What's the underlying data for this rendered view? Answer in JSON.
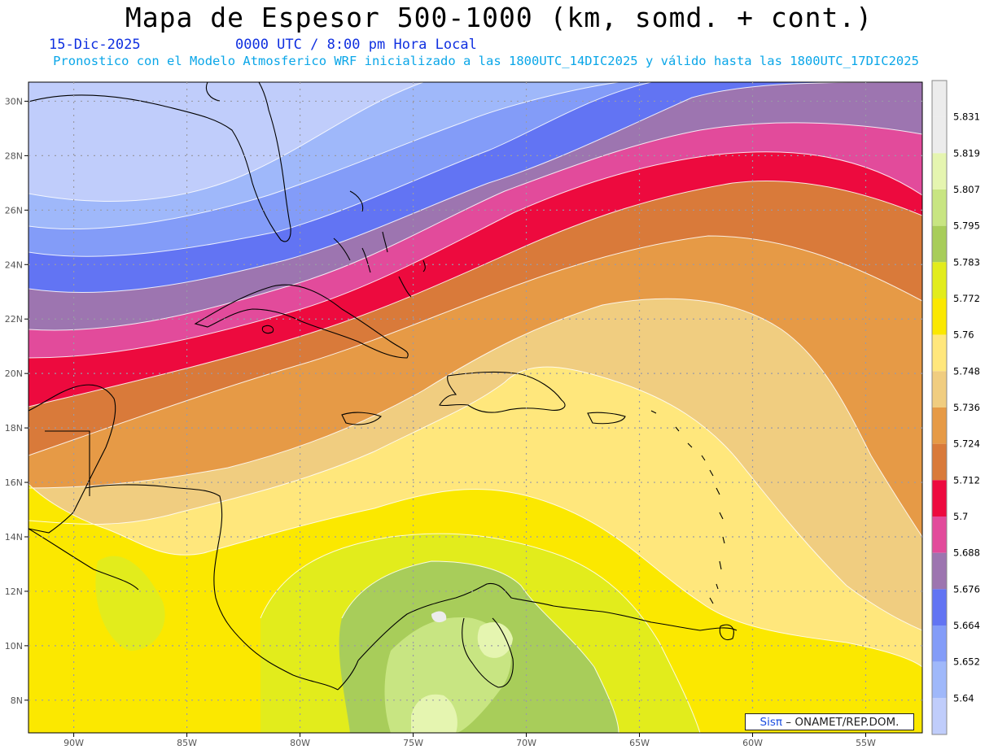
{
  "title": "Mapa de Espesor 500-1000 (km, somd. + cont.)",
  "date": "15-Dic-2025",
  "time": "0000 UTC / 8:00 pm Hora Local",
  "subtitle": "Pronostico con el Modelo Atmosferico WRF inicializado a las 1800UTC_14DIC2025 y válido hasta las  1800UTC_17DIC2025",
  "credit": {
    "brand": "Sisπ",
    "org": "ONAMET/REP.DOM."
  },
  "chart_data": {
    "type": "heatmap",
    "units": "km",
    "lon_ticks": [
      "90W",
      "85W",
      "80W",
      "75W",
      "70W",
      "65W",
      "60W",
      "55W"
    ],
    "lat_ticks": [
      "30N",
      "28N",
      "26N",
      "24N",
      "22N",
      "20N",
      "18N",
      "16N",
      "14N",
      "12N",
      "10N",
      "8N"
    ],
    "colorbar": {
      "levels": [
        "5.64",
        "5.652",
        "5.664",
        "5.676",
        "5.688",
        "5.7",
        "5.712",
        "5.724",
        "5.736",
        "5.748",
        "5.76",
        "5.772",
        "5.783",
        "5.795",
        "5.807",
        "5.819",
        "5.831"
      ],
      "colors": [
        "#c0cdfb",
        "#9fb8fa",
        "#839cf8",
        "#6274f3",
        "#9d75b0",
        "#e24b9b",
        "#ed0a3e",
        "#d97a3a",
        "#e69a46",
        "#f0cd80",
        "#ffe77c",
        "#fbe800",
        "#e2ec1c",
        "#a8cd5a",
        "#c8e582",
        "#e5f5b0",
        "#ececec"
      ]
    }
  }
}
